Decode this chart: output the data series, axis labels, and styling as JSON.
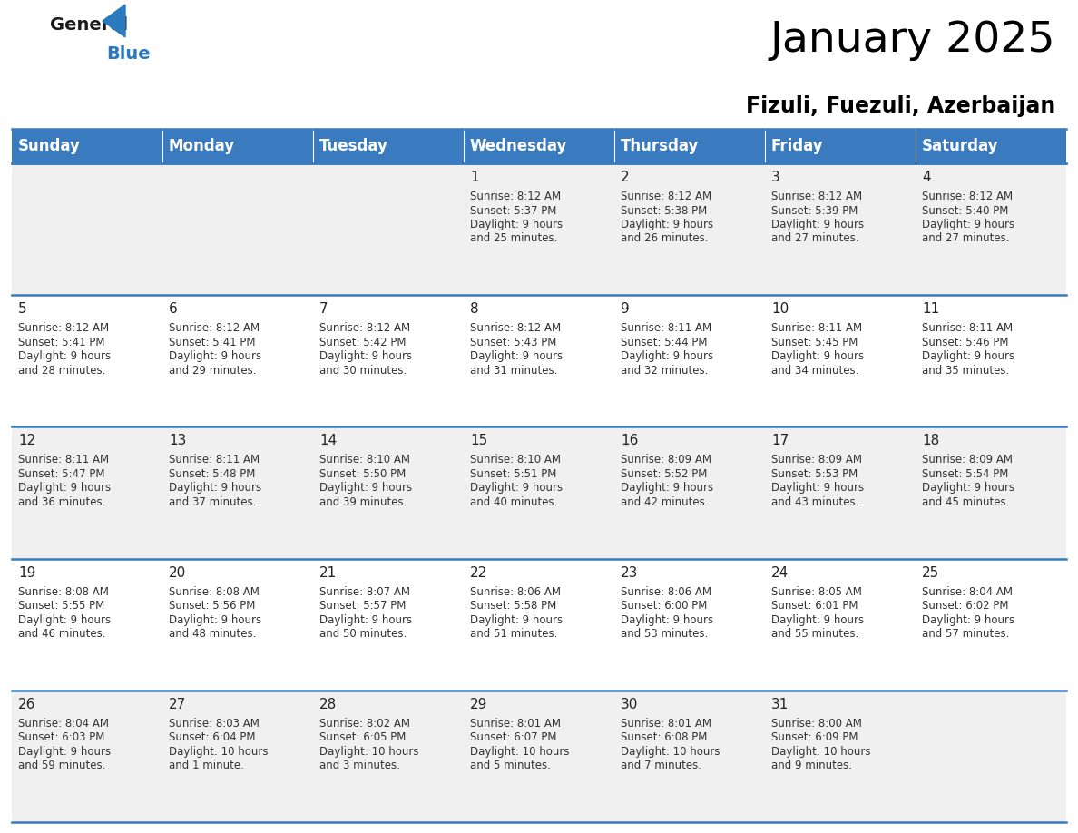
{
  "title": "January 2025",
  "subtitle": "Fizuli, Fuezuli, Azerbaijan",
  "header_color": "#3a7abf",
  "header_text_color": "#ffffff",
  "row_bg_odd": "#f0f0f0",
  "row_bg_even": "#ffffff",
  "border_color": "#3a7abf",
  "day_names": [
    "Sunday",
    "Monday",
    "Tuesday",
    "Wednesday",
    "Thursday",
    "Friday",
    "Saturday"
  ],
  "title_fontsize": 34,
  "subtitle_fontsize": 17,
  "day_header_fontsize": 12,
  "cell_day_fontsize": 11,
  "cell_info_fontsize": 8.5,
  "weeks": [
    [
      {
        "day": "",
        "sunrise": "",
        "sunset": "",
        "daylight_line1": "",
        "daylight_line2": ""
      },
      {
        "day": "",
        "sunrise": "",
        "sunset": "",
        "daylight_line1": "",
        "daylight_line2": ""
      },
      {
        "day": "",
        "sunrise": "",
        "sunset": "",
        "daylight_line1": "",
        "daylight_line2": ""
      },
      {
        "day": "1",
        "sunrise": "8:12 AM",
        "sunset": "5:37 PM",
        "daylight_line1": "Daylight: 9 hours",
        "daylight_line2": "and 25 minutes."
      },
      {
        "day": "2",
        "sunrise": "8:12 AM",
        "sunset": "5:38 PM",
        "daylight_line1": "Daylight: 9 hours",
        "daylight_line2": "and 26 minutes."
      },
      {
        "day": "3",
        "sunrise": "8:12 AM",
        "sunset": "5:39 PM",
        "daylight_line1": "Daylight: 9 hours",
        "daylight_line2": "and 27 minutes."
      },
      {
        "day": "4",
        "sunrise": "8:12 AM",
        "sunset": "5:40 PM",
        "daylight_line1": "Daylight: 9 hours",
        "daylight_line2": "and 27 minutes."
      }
    ],
    [
      {
        "day": "5",
        "sunrise": "8:12 AM",
        "sunset": "5:41 PM",
        "daylight_line1": "Daylight: 9 hours",
        "daylight_line2": "and 28 minutes."
      },
      {
        "day": "6",
        "sunrise": "8:12 AM",
        "sunset": "5:41 PM",
        "daylight_line1": "Daylight: 9 hours",
        "daylight_line2": "and 29 minutes."
      },
      {
        "day": "7",
        "sunrise": "8:12 AM",
        "sunset": "5:42 PM",
        "daylight_line1": "Daylight: 9 hours",
        "daylight_line2": "and 30 minutes."
      },
      {
        "day": "8",
        "sunrise": "8:12 AM",
        "sunset": "5:43 PM",
        "daylight_line1": "Daylight: 9 hours",
        "daylight_line2": "and 31 minutes."
      },
      {
        "day": "9",
        "sunrise": "8:11 AM",
        "sunset": "5:44 PM",
        "daylight_line1": "Daylight: 9 hours",
        "daylight_line2": "and 32 minutes."
      },
      {
        "day": "10",
        "sunrise": "8:11 AM",
        "sunset": "5:45 PM",
        "daylight_line1": "Daylight: 9 hours",
        "daylight_line2": "and 34 minutes."
      },
      {
        "day": "11",
        "sunrise": "8:11 AM",
        "sunset": "5:46 PM",
        "daylight_line1": "Daylight: 9 hours",
        "daylight_line2": "and 35 minutes."
      }
    ],
    [
      {
        "day": "12",
        "sunrise": "8:11 AM",
        "sunset": "5:47 PM",
        "daylight_line1": "Daylight: 9 hours",
        "daylight_line2": "and 36 minutes."
      },
      {
        "day": "13",
        "sunrise": "8:11 AM",
        "sunset": "5:48 PM",
        "daylight_line1": "Daylight: 9 hours",
        "daylight_line2": "and 37 minutes."
      },
      {
        "day": "14",
        "sunrise": "8:10 AM",
        "sunset": "5:50 PM",
        "daylight_line1": "Daylight: 9 hours",
        "daylight_line2": "and 39 minutes."
      },
      {
        "day": "15",
        "sunrise": "8:10 AM",
        "sunset": "5:51 PM",
        "daylight_line1": "Daylight: 9 hours",
        "daylight_line2": "and 40 minutes."
      },
      {
        "day": "16",
        "sunrise": "8:09 AM",
        "sunset": "5:52 PM",
        "daylight_line1": "Daylight: 9 hours",
        "daylight_line2": "and 42 minutes."
      },
      {
        "day": "17",
        "sunrise": "8:09 AM",
        "sunset": "5:53 PM",
        "daylight_line1": "Daylight: 9 hours",
        "daylight_line2": "and 43 minutes."
      },
      {
        "day": "18",
        "sunrise": "8:09 AM",
        "sunset": "5:54 PM",
        "daylight_line1": "Daylight: 9 hours",
        "daylight_line2": "and 45 minutes."
      }
    ],
    [
      {
        "day": "19",
        "sunrise": "8:08 AM",
        "sunset": "5:55 PM",
        "daylight_line1": "Daylight: 9 hours",
        "daylight_line2": "and 46 minutes."
      },
      {
        "day": "20",
        "sunrise": "8:08 AM",
        "sunset": "5:56 PM",
        "daylight_line1": "Daylight: 9 hours",
        "daylight_line2": "and 48 minutes."
      },
      {
        "day": "21",
        "sunrise": "8:07 AM",
        "sunset": "5:57 PM",
        "daylight_line1": "Daylight: 9 hours",
        "daylight_line2": "and 50 minutes."
      },
      {
        "day": "22",
        "sunrise": "8:06 AM",
        "sunset": "5:58 PM",
        "daylight_line1": "Daylight: 9 hours",
        "daylight_line2": "and 51 minutes."
      },
      {
        "day": "23",
        "sunrise": "8:06 AM",
        "sunset": "6:00 PM",
        "daylight_line1": "Daylight: 9 hours",
        "daylight_line2": "and 53 minutes."
      },
      {
        "day": "24",
        "sunrise": "8:05 AM",
        "sunset": "6:01 PM",
        "daylight_line1": "Daylight: 9 hours",
        "daylight_line2": "and 55 minutes."
      },
      {
        "day": "25",
        "sunrise": "8:04 AM",
        "sunset": "6:02 PM",
        "daylight_line1": "Daylight: 9 hours",
        "daylight_line2": "and 57 minutes."
      }
    ],
    [
      {
        "day": "26",
        "sunrise": "8:04 AM",
        "sunset": "6:03 PM",
        "daylight_line1": "Daylight: 9 hours",
        "daylight_line2": "and 59 minutes."
      },
      {
        "day": "27",
        "sunrise": "8:03 AM",
        "sunset": "6:04 PM",
        "daylight_line1": "Daylight: 10 hours",
        "daylight_line2": "and 1 minute."
      },
      {
        "day": "28",
        "sunrise": "8:02 AM",
        "sunset": "6:05 PM",
        "daylight_line1": "Daylight: 10 hours",
        "daylight_line2": "and 3 minutes."
      },
      {
        "day": "29",
        "sunrise": "8:01 AM",
        "sunset": "6:07 PM",
        "daylight_line1": "Daylight: 10 hours",
        "daylight_line2": "and 5 minutes."
      },
      {
        "day": "30",
        "sunrise": "8:01 AM",
        "sunset": "6:08 PM",
        "daylight_line1": "Daylight: 10 hours",
        "daylight_line2": "and 7 minutes."
      },
      {
        "day": "31",
        "sunrise": "8:00 AM",
        "sunset": "6:09 PM",
        "daylight_line1": "Daylight: 10 hours",
        "daylight_line2": "and 9 minutes."
      },
      {
        "day": "",
        "sunrise": "",
        "sunset": "",
        "daylight_line1": "",
        "daylight_line2": ""
      }
    ]
  ]
}
